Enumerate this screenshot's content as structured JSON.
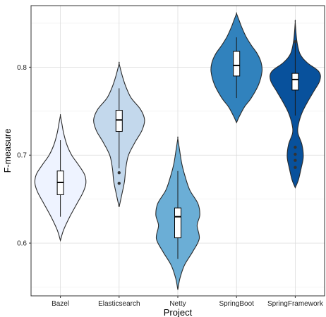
{
  "chart_data": {
    "type": "violin",
    "title": "",
    "xlabel": "Project",
    "ylabel": "F-measure",
    "ylim": [
      0.54,
      0.87
    ],
    "yticks": [
      0.6,
      0.7,
      0.8
    ],
    "ytick_labels": [
      "0.6",
      "0.7",
      "0.8"
    ],
    "grid": true,
    "legend": "none",
    "categories": [
      "Bazel",
      "Elasticsearch",
      "Netty",
      "SpringBoot",
      "SpringFramework"
    ],
    "series": [
      {
        "category": "Bazel",
        "color": "#eef3ff",
        "min": 0.603,
        "max": 0.745,
        "whisker_low": 0.63,
        "whisker_high": 0.717,
        "q1": 0.655,
        "median": 0.669,
        "q3": 0.682,
        "outliers": [],
        "density": [
          [
            0.603,
            0.0
          ],
          [
            0.615,
            0.12
          ],
          [
            0.63,
            0.35
          ],
          [
            0.645,
            0.62
          ],
          [
            0.658,
            0.85
          ],
          [
            0.668,
            0.95
          ],
          [
            0.678,
            0.9
          ],
          [
            0.69,
            0.65
          ],
          [
            0.7,
            0.42
          ],
          [
            0.712,
            0.24
          ],
          [
            0.725,
            0.12
          ],
          [
            0.735,
            0.06
          ],
          [
            0.745,
            0.0
          ]
        ]
      },
      {
        "category": "Elasticsearch",
        "color": "#c3d8ec",
        "min": 0.641,
        "max": 0.804,
        "whisker_low": 0.685,
        "whisker_high": 0.776,
        "q1": 0.727,
        "median": 0.74,
        "q3": 0.751,
        "outliers": [
          0.68,
          0.668
        ],
        "density": [
          [
            0.641,
            0.0
          ],
          [
            0.655,
            0.1
          ],
          [
            0.67,
            0.2
          ],
          [
            0.685,
            0.25
          ],
          [
            0.7,
            0.35
          ],
          [
            0.715,
            0.6
          ],
          [
            0.728,
            0.85
          ],
          [
            0.74,
            0.95
          ],
          [
            0.752,
            0.8
          ],
          [
            0.765,
            0.45
          ],
          [
            0.778,
            0.25
          ],
          [
            0.79,
            0.12
          ],
          [
            0.804,
            0.0
          ]
        ]
      },
      {
        "category": "Netty",
        "color": "#6baed6",
        "min": 0.547,
        "max": 0.719,
        "whisker_low": 0.582,
        "whisker_high": 0.682,
        "q1": 0.606,
        "median": 0.63,
        "q3": 0.64,
        "outliers": [],
        "density": [
          [
            0.547,
            0.0
          ],
          [
            0.56,
            0.08
          ],
          [
            0.575,
            0.25
          ],
          [
            0.59,
            0.55
          ],
          [
            0.605,
            0.8
          ],
          [
            0.62,
            0.72
          ],
          [
            0.632,
            0.82
          ],
          [
            0.645,
            0.75
          ],
          [
            0.66,
            0.45
          ],
          [
            0.675,
            0.28
          ],
          [
            0.69,
            0.15
          ],
          [
            0.705,
            0.07
          ],
          [
            0.719,
            0.0
          ]
        ]
      },
      {
        "category": "SpringBoot",
        "color": "#3182bd",
        "min": 0.737,
        "max": 0.861,
        "whisker_low": 0.765,
        "whisker_high": 0.834,
        "q1": 0.79,
        "median": 0.802,
        "q3": 0.818,
        "outliers": [],
        "density": [
          [
            0.737,
            0.0
          ],
          [
            0.745,
            0.12
          ],
          [
            0.755,
            0.3
          ],
          [
            0.765,
            0.55
          ],
          [
            0.78,
            0.82
          ],
          [
            0.795,
            0.95
          ],
          [
            0.805,
            0.92
          ],
          [
            0.815,
            0.78
          ],
          [
            0.825,
            0.55
          ],
          [
            0.835,
            0.35
          ],
          [
            0.845,
            0.2
          ],
          [
            0.853,
            0.1
          ],
          [
            0.861,
            0.0
          ]
        ]
      },
      {
        "category": "SpringFramework",
        "color": "#08519c",
        "min": 0.663,
        "max": 0.851,
        "whisker_low": 0.745,
        "whisker_high": 0.828,
        "q1": 0.774,
        "median": 0.786,
        "q3": 0.793,
        "outliers": [
          0.709,
          0.701,
          0.694,
          0.686,
          0.829
        ],
        "density": [
          [
            0.663,
            0.0
          ],
          [
            0.672,
            0.12
          ],
          [
            0.685,
            0.22
          ],
          [
            0.698,
            0.3
          ],
          [
            0.712,
            0.25
          ],
          [
            0.725,
            0.1
          ],
          [
            0.735,
            0.12
          ],
          [
            0.748,
            0.25
          ],
          [
            0.76,
            0.45
          ],
          [
            0.772,
            0.68
          ],
          [
            0.785,
            0.92
          ],
          [
            0.795,
            0.88
          ],
          [
            0.805,
            0.45
          ],
          [
            0.815,
            0.18
          ],
          [
            0.83,
            0.06
          ],
          [
            0.851,
            0.0
          ]
        ]
      }
    ]
  }
}
